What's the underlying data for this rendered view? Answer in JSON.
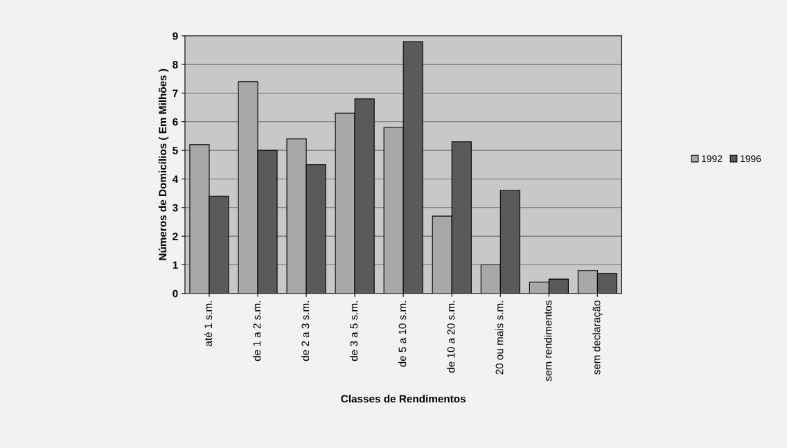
{
  "chart_data": {
    "type": "bar",
    "xlabel": "Classes de Rendimentos",
    "ylabel": "Números de Domicílios ( Em Milhões )",
    "categories": [
      "até 1 s.m.",
      "de 1 a 2 s.m.",
      "de 2 a 3 s.m.",
      "de 3 a 5 s.m.",
      "de 5 a 10 s.m.",
      "de 10 a 20 s.m.",
      "20 ou mais s.m.",
      "sem rendimentos",
      "sem declaração"
    ],
    "series": [
      {
        "name": "1992",
        "color": "#a8a8a8",
        "values": [
          5.2,
          7.4,
          5.4,
          6.3,
          5.8,
          2.7,
          1.0,
          0.4,
          0.8
        ]
      },
      {
        "name": "1996",
        "color": "#5a5a5a",
        "values": [
          3.4,
          5.0,
          4.5,
          6.8,
          8.8,
          5.3,
          3.6,
          0.5,
          0.7
        ]
      }
    ],
    "ylim": [
      0,
      9
    ],
    "yticks": [
      0,
      1,
      2,
      3,
      4,
      5,
      6,
      7,
      8,
      9
    ],
    "grid": "y",
    "legend": "right"
  }
}
